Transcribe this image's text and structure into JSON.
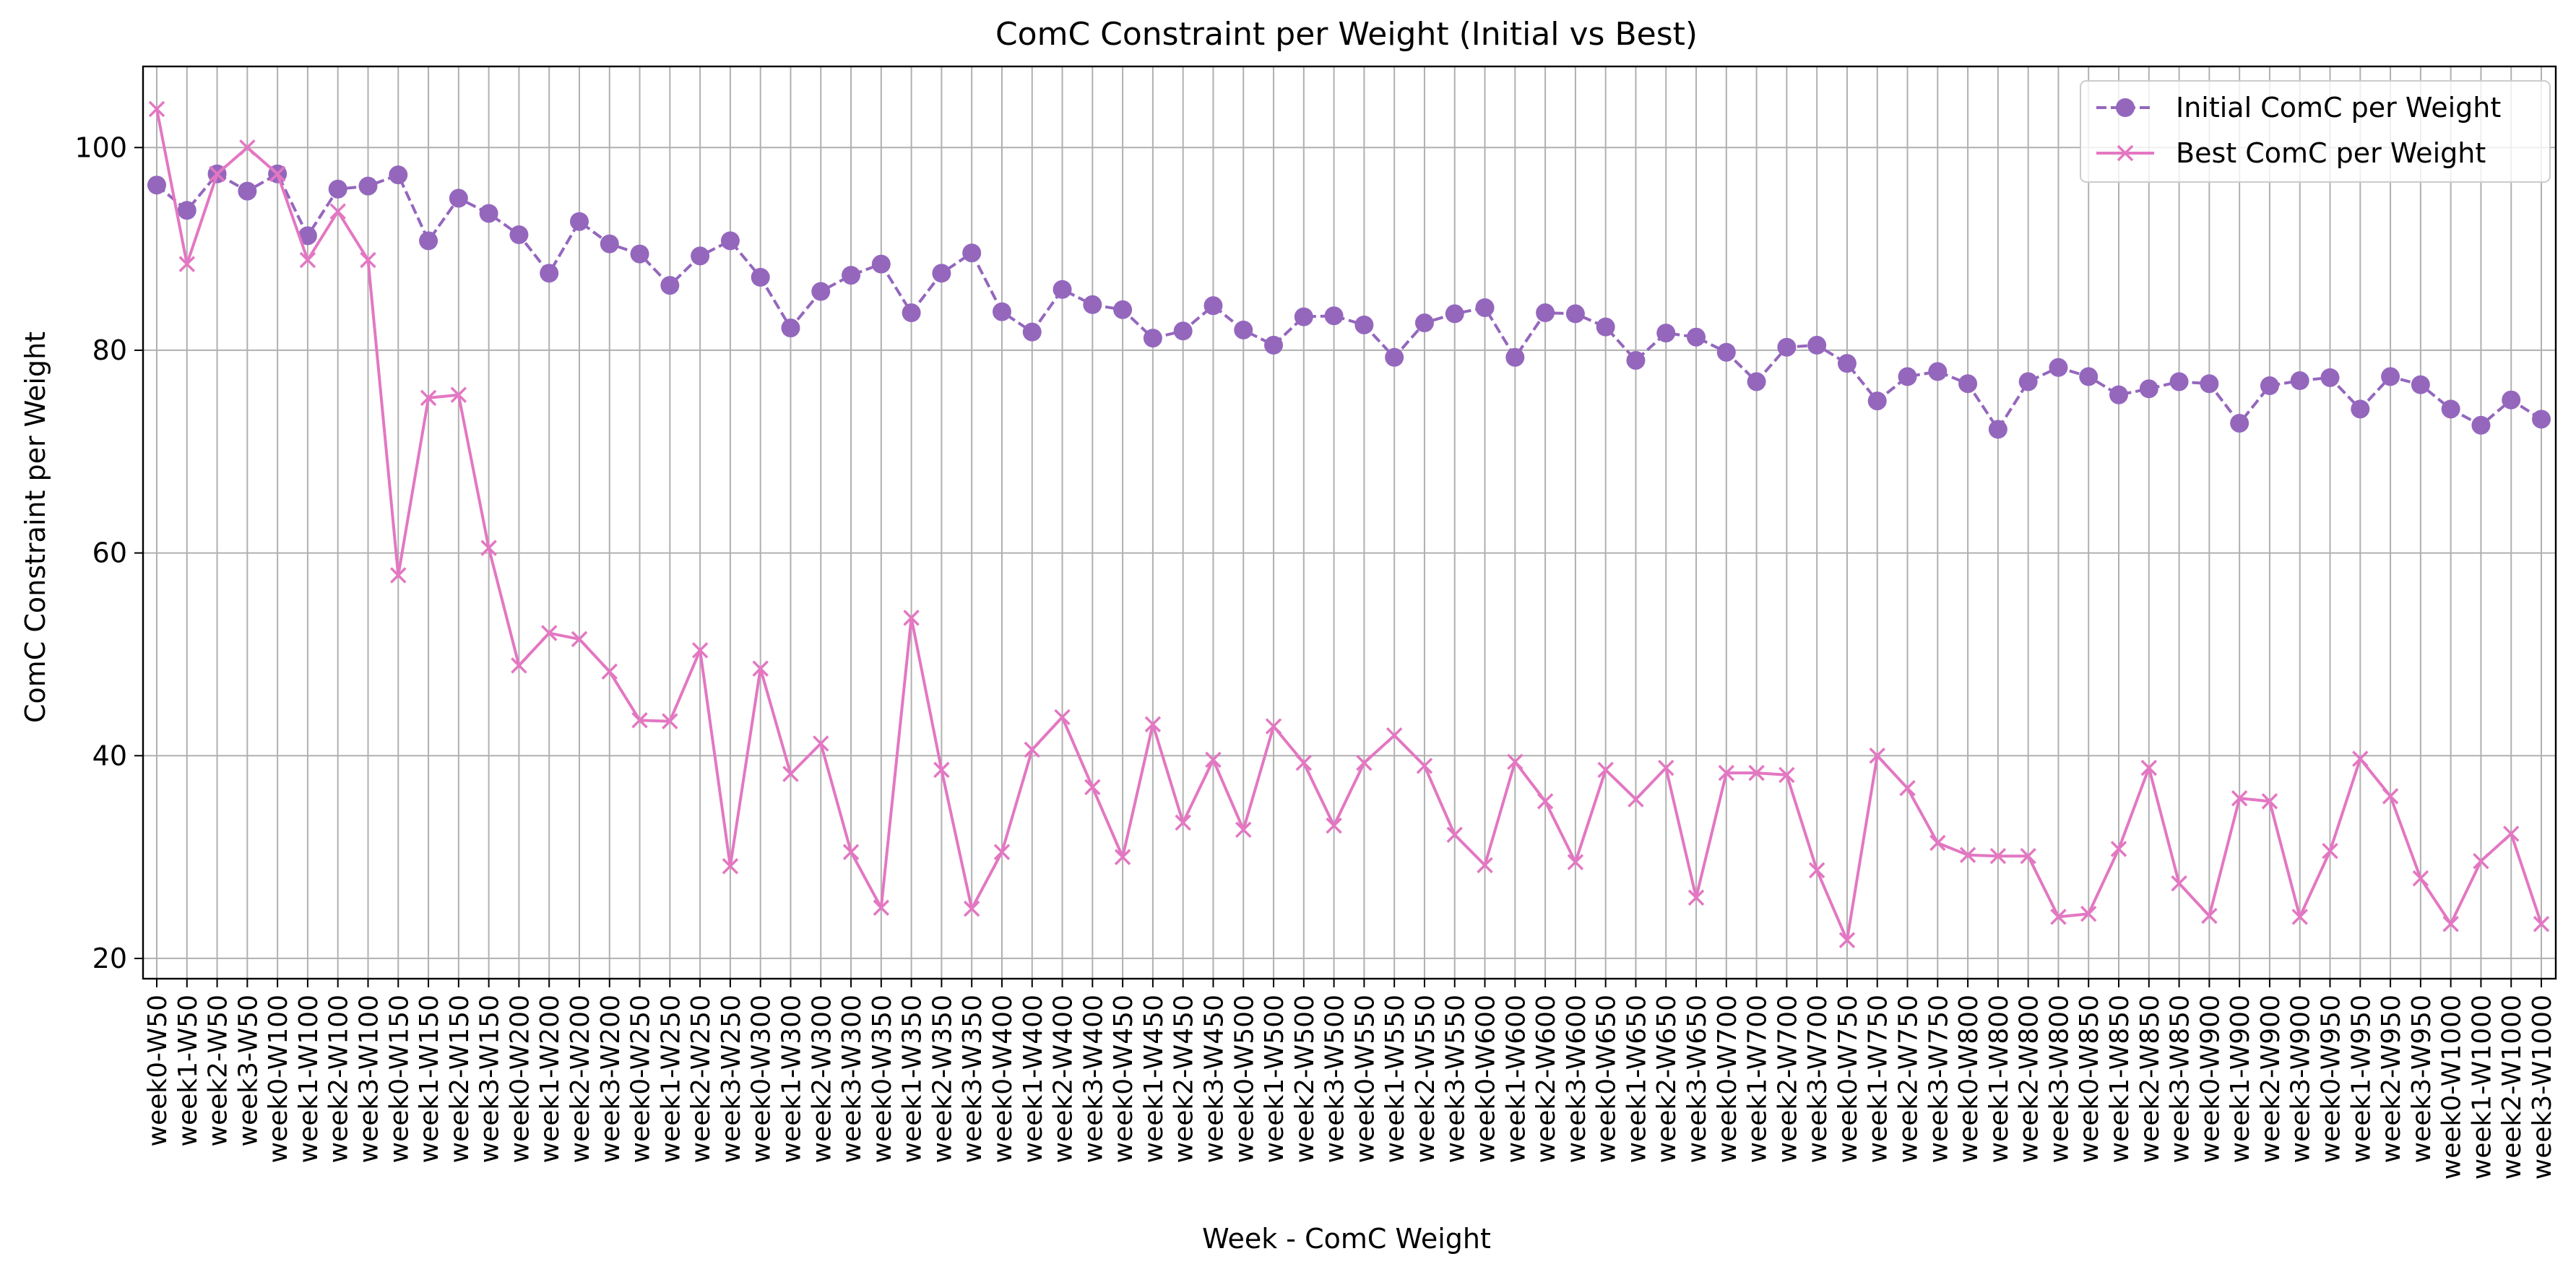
{
  "chart_data": {
    "type": "line",
    "title": "ComC Constraint per Weight (Initial vs Best)",
    "xlabel": "Week - ComC Weight",
    "ylabel": "ComC Constraint per Weight",
    "ylim": [
      18,
      108
    ],
    "yticks": [
      20,
      40,
      60,
      80,
      100
    ],
    "grid": true,
    "legend": "top-right",
    "categories": [
      "week0-W50",
      "week1-W50",
      "week2-W50",
      "week3-W50",
      "week0-W100",
      "week1-W100",
      "week2-W100",
      "week3-W100",
      "week0-W150",
      "week1-W150",
      "week2-W150",
      "week3-W150",
      "week0-W200",
      "week1-W200",
      "week2-W200",
      "week3-W200",
      "week0-W250",
      "week1-W250",
      "week2-W250",
      "week3-W250",
      "week0-W300",
      "week1-W300",
      "week2-W300",
      "week3-W300",
      "week0-W350",
      "week1-W350",
      "week2-W350",
      "week3-W350",
      "week0-W400",
      "week1-W400",
      "week2-W400",
      "week3-W400",
      "week0-W450",
      "week1-W450",
      "week2-W450",
      "week3-W450",
      "week0-W500",
      "week1-W500",
      "week2-W500",
      "week3-W500",
      "week0-W550",
      "week1-W550",
      "week2-W550",
      "week3-W550",
      "week0-W600",
      "week1-W600",
      "week2-W600",
      "week3-W600",
      "week0-W650",
      "week1-W650",
      "week2-W650",
      "week3-W650",
      "week0-W700",
      "week1-W700",
      "week2-W700",
      "week3-W700",
      "week0-W750",
      "week1-W750",
      "week2-W750",
      "week3-W750",
      "week0-W800",
      "week1-W800",
      "week2-W800",
      "week3-W800",
      "week0-W850",
      "week1-W850",
      "week2-W850",
      "week3-W850",
      "week0-W900",
      "week1-W900",
      "week2-W900",
      "week3-W900",
      "week0-W950",
      "week1-W950",
      "week2-W950",
      "week3-W950",
      "week0-W1000",
      "week1-W1000",
      "week2-W1000",
      "week3-W1000"
    ],
    "series": [
      {
        "name": "Initial ComC per Weight",
        "color": "#9467bd",
        "linestyle": "dashed",
        "marker": "circle",
        "values": [
          96.3,
          93.8,
          97.4,
          95.7,
          97.4,
          91.3,
          95.9,
          96.2,
          97.3,
          90.8,
          95.0,
          93.5,
          91.4,
          87.6,
          92.7,
          90.5,
          89.5,
          86.4,
          89.3,
          90.8,
          87.2,
          82.2,
          85.8,
          87.4,
          88.5,
          83.7,
          87.6,
          89.6,
          83.8,
          81.8,
          86.0,
          84.5,
          84.0,
          81.2,
          81.9,
          84.4,
          82.0,
          80.5,
          83.3,
          83.4,
          82.5,
          79.3,
          82.7,
          83.6,
          84.2,
          79.3,
          83.7,
          83.6,
          82.3,
          79.0,
          81.7,
          81.3,
          79.8,
          76.9,
          80.3,
          80.5,
          78.7,
          75.0,
          77.4,
          77.9,
          76.7,
          72.2,
          76.9,
          78.3,
          77.4,
          75.6,
          76.2,
          76.9,
          76.7,
          72.8,
          76.5,
          77.0,
          77.3,
          74.2,
          77.4,
          76.6,
          74.2,
          72.6,
          75.1,
          73.2
        ]
      },
      {
        "name": "Best ComC per Weight",
        "color": "#e377c2",
        "linestyle": "solid",
        "marker": "x",
        "values": [
          103.8,
          88.5,
          97.4,
          100.0,
          97.4,
          88.9,
          93.7,
          88.9,
          57.8,
          75.3,
          75.6,
          60.5,
          48.9,
          52.1,
          51.5,
          48.3,
          43.5,
          43.4,
          50.4,
          29.1,
          48.6,
          38.2,
          41.2,
          30.5,
          25.0,
          53.6,
          38.6,
          24.9,
          30.5,
          40.6,
          43.8,
          36.9,
          30.0,
          43.1,
          33.4,
          39.6,
          32.7,
          42.9,
          39.3,
          33.1,
          39.3,
          42.0,
          39.0,
          32.2,
          29.2,
          39.4,
          35.5,
          29.5,
          38.6,
          35.7,
          38.8,
          26.0,
          38.3,
          38.3,
          38.1,
          28.7,
          21.8,
          40.0,
          36.8,
          31.4,
          30.2,
          30.1,
          30.1,
          24.1,
          24.4,
          30.8,
          38.8,
          27.4,
          24.2,
          35.8,
          35.5,
          24.1,
          30.6,
          39.7,
          36.0,
          27.9,
          23.4,
          29.6,
          32.3,
          23.4
        ]
      }
    ]
  }
}
